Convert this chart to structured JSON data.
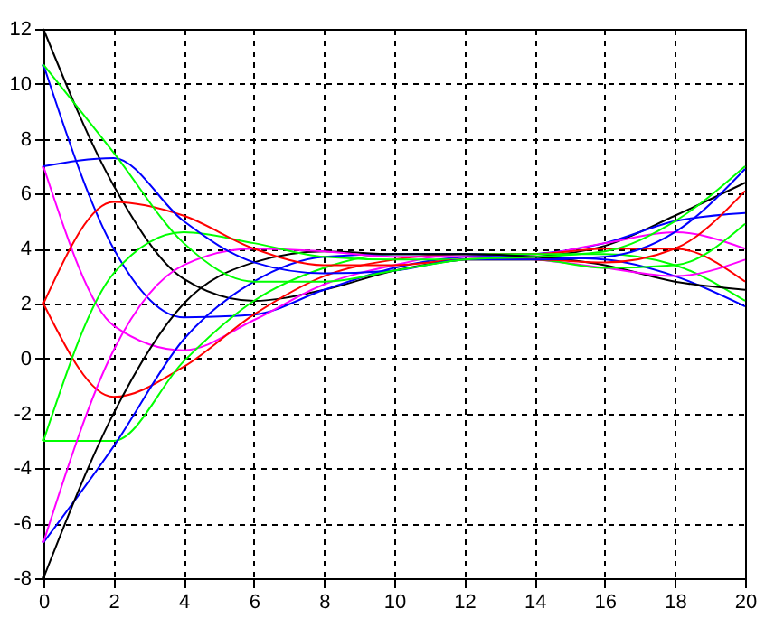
{
  "chart_data": {
    "type": "line",
    "x": [
      0,
      2,
      4,
      6,
      8,
      10,
      12,
      14,
      16,
      18,
      20
    ],
    "series": [
      {
        "color": "#000000",
        "values": [
          12,
          6.3,
          2.9,
          2.1,
          2.5,
          3.2,
          3.6,
          3.7,
          4.1,
          5.2,
          6.4
        ]
      },
      {
        "color": "#0000ff",
        "values": [
          10.7,
          4.0,
          1.5,
          1.6,
          2.5,
          3.3,
          3.7,
          3.8,
          4.2,
          5.0,
          5.3
        ]
      },
      {
        "color": "#ff00ff",
        "values": [
          7,
          1.2,
          0.3,
          1.4,
          2.7,
          3.4,
          3.8,
          3.8,
          4.2,
          4.6,
          4.0
        ]
      },
      {
        "color": "#ff0000",
        "values": [
          2,
          -1.4,
          -0.3,
          1.6,
          3.0,
          3.6,
          3.8,
          3.8,
          4.0,
          4,
          2.8
        ]
      },
      {
        "color": "#00ff00",
        "values": [
          -3,
          -3.0,
          -0.1,
          2.1,
          3.3,
          3.8,
          3.8,
          3.8,
          3.8,
          3.4,
          2.1
        ]
      },
      {
        "color": "#0000ff",
        "values": [
          -6.7,
          -3.2,
          0.7,
          2.8,
          3.7,
          3.8,
          3.8,
          3.7,
          3.6,
          3.0,
          1.9
        ]
      },
      {
        "color": "#000000",
        "values": [
          -8,
          -2.0,
          2.0,
          3.5,
          3.9,
          3.8,
          3.8,
          3.7,
          3.4,
          2.8,
          2.5
        ]
      },
      {
        "color": "#ff00ff",
        "values": [
          -6.7,
          0.3,
          3.4,
          4.0,
          3.9,
          3.7,
          3.7,
          3.6,
          3.3,
          3.0,
          3.6
        ]
      },
      {
        "color": "#00ff00",
        "values": [
          -3,
          3.1,
          4.6,
          4.2,
          3.7,
          3.6,
          3.6,
          3.6,
          3.3,
          3.4,
          4.9
        ]
      },
      {
        "color": "#ff0000",
        "values": [
          2,
          5.7,
          5.2,
          4.0,
          3.4,
          3.4,
          3.6,
          3.6,
          3.5,
          4,
          6.1
        ]
      },
      {
        "color": "#0000ff",
        "values": [
          7,
          7.3,
          5.0,
          3.5,
          3.1,
          3.2,
          3.6,
          3.6,
          3.7,
          4.6,
          6.9
        ]
      },
      {
        "color": "#00ff00",
        "values": [
          10.7,
          7.5,
          4.2,
          2.8,
          2.8,
          3.2,
          3.6,
          3.7,
          3.9,
          5.0,
          7.0
        ]
      }
    ],
    "xlim": [
      0,
      20
    ],
    "xticks": [
      0,
      2,
      4,
      6,
      8,
      10,
      12,
      14,
      16,
      18,
      20
    ],
    "ylim": [
      -8,
      12
    ],
    "yticks": [
      -8,
      -6,
      -4,
      -2,
      0,
      2,
      4,
      6,
      8,
      10,
      12
    ],
    "grid": true,
    "legend": false,
    "line_style": "solid",
    "marker": "none"
  }
}
